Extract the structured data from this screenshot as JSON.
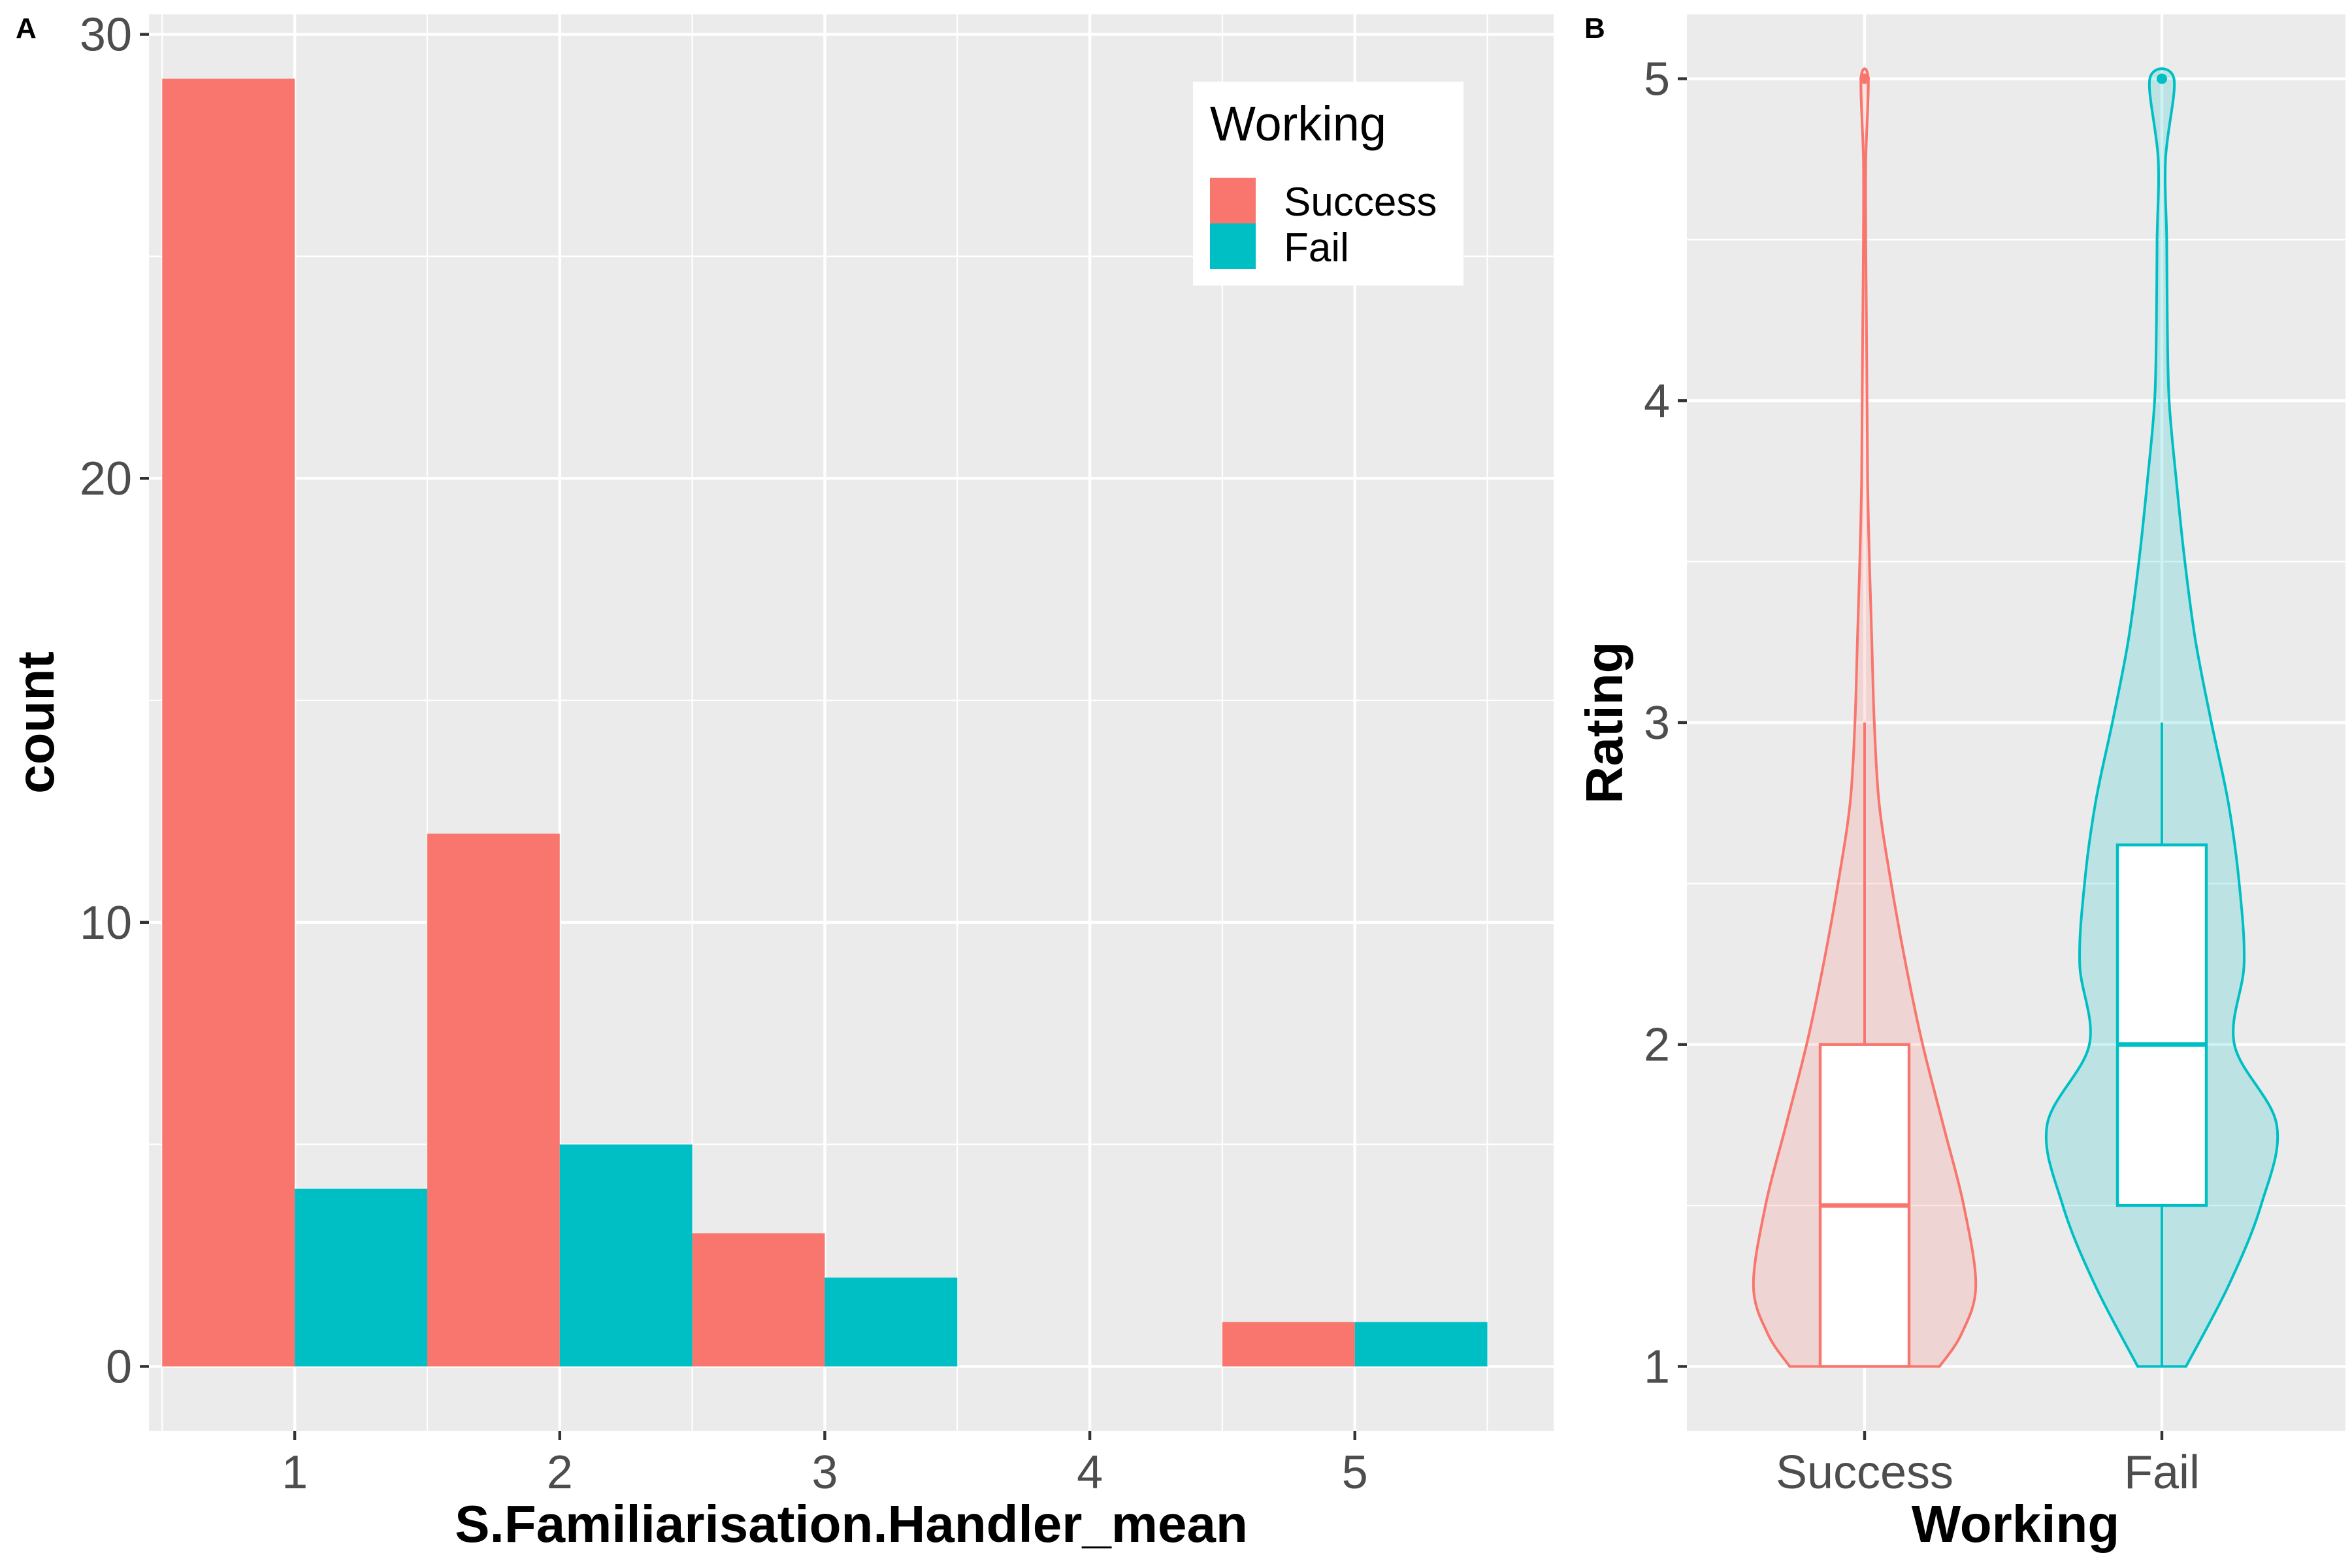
{
  "colors": {
    "success": "#F8766D",
    "fail": "#00BFC4",
    "panel_bg": "#EBEBEB",
    "grid": "#FFFFFF"
  },
  "chart_data": [
    {
      "panel": "A",
      "type": "bar",
      "position": "dodge",
      "xlabel": "S.Familiarisation.Handler_mean",
      "ylabel": "count",
      "x_ticks": [
        1,
        2,
        3,
        4,
        5
      ],
      "y_ticks": [
        0,
        10,
        20,
        30
      ],
      "xlim": [
        0.45,
        5.75
      ],
      "ylim": [
        -1.45,
        30.45
      ],
      "legend": {
        "title": "Working",
        "position": "top-right",
        "entries": [
          "Success",
          "Fail"
        ]
      },
      "series": [
        {
          "name": "Success",
          "color": "#F8766D",
          "bars": [
            {
              "x": 1,
              "count": 29
            },
            {
              "x": 2,
              "count": 12
            },
            {
              "x": 3,
              "count": 3
            },
            {
              "x": 4,
              "count": 0
            },
            {
              "x": 5,
              "count": 1
            }
          ]
        },
        {
          "name": "Fail",
          "color": "#00BFC4",
          "bars": [
            {
              "x": 1,
              "count": 4
            },
            {
              "x": 2,
              "count": 5
            },
            {
              "x": 3,
              "count": 2
            },
            {
              "x": 4,
              "count": 0
            },
            {
              "x": 5,
              "count": 1
            }
          ]
        }
      ]
    },
    {
      "panel": "B",
      "type": "violin",
      "xlabel": "Working",
      "ylabel": "Rating",
      "categories": [
        "Success",
        "Fail"
      ],
      "y_ticks": [
        1,
        2,
        3,
        4,
        5
      ],
      "ylim": [
        0.8,
        5.2
      ],
      "series": [
        {
          "name": "Success",
          "color": "#F8766D",
          "box": {
            "min": 1,
            "q1": 1,
            "median": 1.5,
            "q3": 2,
            "whisker_high": 3,
            "outliers": [
              5
            ]
          },
          "density": [
            [
              1,
              0.62
            ],
            [
              1.1,
              0.8
            ],
            [
              1.25,
              0.92
            ],
            [
              1.5,
              0.82
            ],
            [
              1.75,
              0.65
            ],
            [
              2,
              0.48
            ],
            [
              2.25,
              0.34
            ],
            [
              2.5,
              0.22
            ],
            [
              2.75,
              0.12
            ],
            [
              3,
              0.08
            ],
            [
              3.25,
              0.06
            ],
            [
              3.5,
              0.04
            ],
            [
              3.75,
              0.025
            ],
            [
              4,
              0.02
            ],
            [
              4.25,
              0.015
            ],
            [
              4.5,
              0.01
            ],
            [
              4.75,
              0.01
            ],
            [
              5,
              0.03
            ]
          ]
        },
        {
          "name": "Fail",
          "color": "#00BFC4",
          "box": {
            "min": 1,
            "q1": 1.5,
            "median": 2,
            "q3": 2.62,
            "whisker_high": 3,
            "outliers": [
              5
            ]
          },
          "density": [
            [
              1,
              0.2
            ],
            [
              1.25,
              0.55
            ],
            [
              1.5,
              0.82
            ],
            [
              1.75,
              0.95
            ],
            [
              2,
              0.6
            ],
            [
              2.25,
              0.68
            ],
            [
              2.5,
              0.64
            ],
            [
              2.75,
              0.55
            ],
            [
              3,
              0.41
            ],
            [
              3.25,
              0.28
            ],
            [
              3.5,
              0.19
            ],
            [
              3.75,
              0.12
            ],
            [
              4,
              0.06
            ],
            [
              4.25,
              0.045
            ],
            [
              4.5,
              0.04
            ],
            [
              4.75,
              0.03
            ],
            [
              5,
              0.1
            ]
          ]
        }
      ]
    }
  ]
}
